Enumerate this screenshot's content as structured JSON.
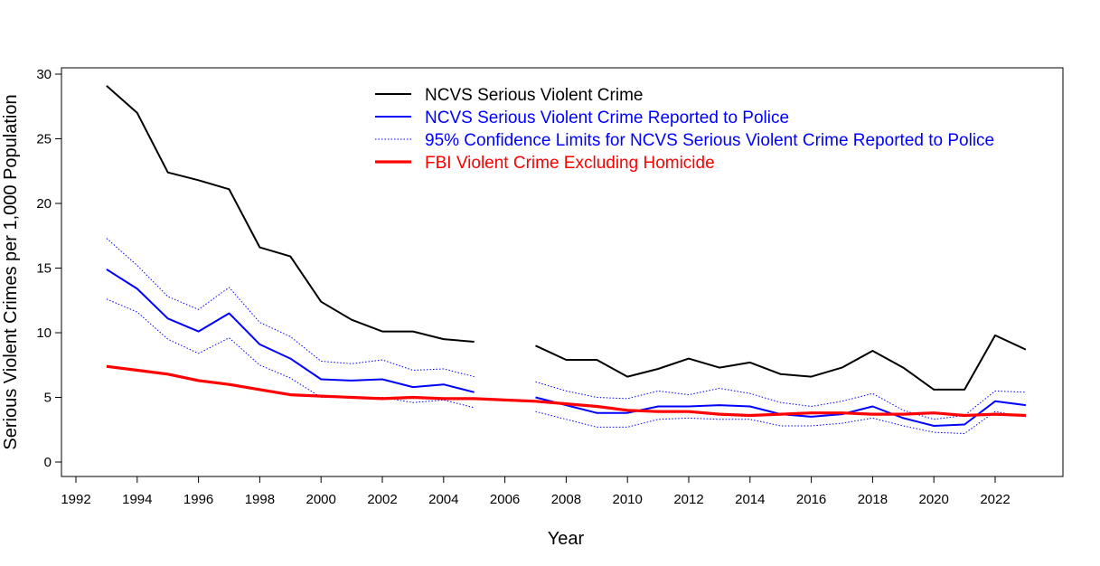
{
  "chart_data": {
    "type": "line",
    "xlabel": "Year",
    "ylabel": "Serious Violent Crimes per 1,000 Population",
    "xlim": [
      1992,
      2024
    ],
    "ylim": [
      0,
      30
    ],
    "x_ticks": [
      1992,
      1994,
      1996,
      1998,
      2000,
      2002,
      2004,
      2006,
      2008,
      2010,
      2012,
      2014,
      2016,
      2018,
      2020,
      2022
    ],
    "y_ticks": [
      0,
      5,
      10,
      15,
      20,
      25,
      30
    ],
    "grid": false,
    "legend_position": "top-center",
    "x": [
      1993,
      1994,
      1995,
      1996,
      1997,
      1998,
      1999,
      2000,
      2001,
      2002,
      2003,
      2004,
      2005,
      2006,
      2007,
      2008,
      2009,
      2010,
      2011,
      2012,
      2013,
      2014,
      2015,
      2016,
      2017,
      2018,
      2019,
      2020,
      2021,
      2022,
      2023
    ],
    "series": [
      {
        "name": "NCVS Serious Violent Crime",
        "color": "#000000",
        "style": "solid",
        "values": [
          29.1,
          27.0,
          22.4,
          21.8,
          21.1,
          16.6,
          15.9,
          12.4,
          11.0,
          10.1,
          10.1,
          9.5,
          9.3,
          null,
          9.0,
          7.9,
          7.9,
          6.6,
          7.2,
          8.0,
          7.3,
          7.7,
          6.8,
          6.6,
          7.3,
          8.6,
          7.3,
          5.6,
          5.6,
          9.8,
          8.7
        ]
      },
      {
        "name": "NCVS Serious Violent Crime Reported to Police",
        "color": "#0000ff",
        "style": "solid",
        "values": [
          14.9,
          13.4,
          11.1,
          10.1,
          11.5,
          9.1,
          8.0,
          6.4,
          6.3,
          6.4,
          5.8,
          6.0,
          5.4,
          null,
          5.0,
          4.4,
          3.8,
          3.8,
          4.3,
          4.3,
          4.4,
          4.3,
          3.7,
          3.5,
          3.7,
          4.3,
          3.4,
          2.8,
          2.9,
          4.7,
          4.4
        ]
      },
      {
        "name": "95% Confidence Limits for NCVS Serious Violent Crime Reported to Police",
        "color": "#0000ff",
        "style": "dotted",
        "upper": [
          17.3,
          15.2,
          12.8,
          11.8,
          13.5,
          10.8,
          9.7,
          7.8,
          7.6,
          7.9,
          7.1,
          7.2,
          6.6,
          null,
          6.2,
          5.5,
          5.0,
          4.9,
          5.5,
          5.2,
          5.7,
          5.3,
          4.6,
          4.3,
          4.7,
          5.3,
          4.0,
          3.3,
          3.6,
          5.5,
          5.4
        ],
        "lower": [
          12.6,
          11.6,
          9.5,
          8.4,
          9.6,
          7.5,
          6.5,
          5.0,
          5.0,
          5.0,
          4.6,
          4.8,
          4.2,
          null,
          3.9,
          3.3,
          2.7,
          2.7,
          3.3,
          3.4,
          3.3,
          3.3,
          2.8,
          2.8,
          3.0,
          3.4,
          2.8,
          2.3,
          2.2,
          3.9,
          3.5
        ]
      },
      {
        "name": "FBI Violent Crime Excluding Homicide",
        "color": "#ff0000",
        "style": "solid-thick",
        "values": [
          7.4,
          7.1,
          6.8,
          6.3,
          6.0,
          5.6,
          5.2,
          5.1,
          5.0,
          4.9,
          5.0,
          4.9,
          4.9,
          4.8,
          4.7,
          4.5,
          4.3,
          4.0,
          3.9,
          3.9,
          3.7,
          3.6,
          3.7,
          3.8,
          3.8,
          3.7,
          3.7,
          3.8,
          3.6,
          3.7,
          3.6
        ]
      }
    ]
  }
}
